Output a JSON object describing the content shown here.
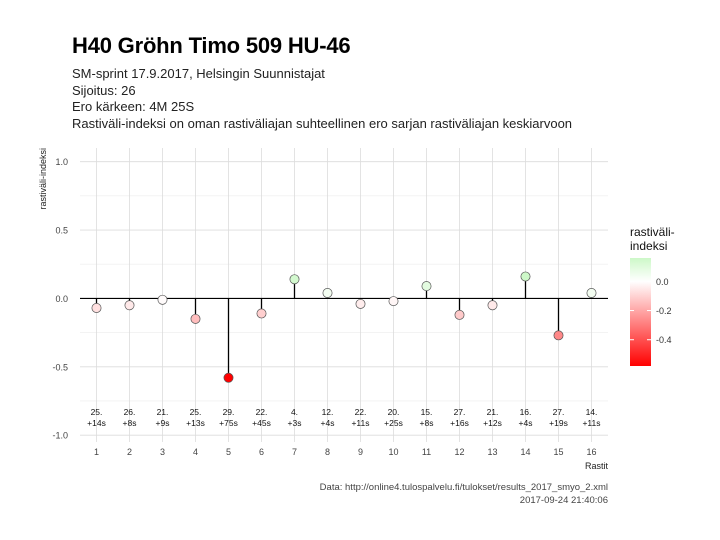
{
  "header": {
    "title": "H40 Gröhn Timo 509 HU-46",
    "subtitle_lines": [
      "SM-sprint 17.9.2017, Helsingin Suunnistajat",
      "Sijoitus: 26",
      "Ero kärkeen: 4M 25S",
      "Rastiväli-indeksi on oman rastiväliajan suhteellinen ero sarjan rastiväliajan keskiarvoon"
    ]
  },
  "caption": {
    "source": "Data: http://online4.tulospalvelu.fi/tulokset/results_2017_smyo_2.xml",
    "timestamp": "2017-09-24 21:40:06"
  },
  "chart_data": {
    "type": "lollipop",
    "xlabel": "Rastit",
    "ylabel": "rastiväli-indeksi",
    "ylim": [
      -1.05,
      1.1
    ],
    "yticks": [
      1.0,
      0.5,
      0.0,
      -0.5,
      -1.0
    ],
    "ytick_labels": [
      "1.0",
      "0.5",
      "0.0",
      "-0.5",
      "-1.0"
    ],
    "x": [
      1,
      2,
      3,
      4,
      5,
      6,
      7,
      8,
      9,
      10,
      11,
      12,
      13,
      14,
      15,
      16
    ],
    "values": [
      -0.07,
      -0.05,
      -0.01,
      -0.15,
      -0.58,
      -0.11,
      0.14,
      0.04,
      -0.04,
      -0.02,
      0.09,
      -0.12,
      -0.05,
      0.16,
      -0.27,
      0.04
    ],
    "rank_labels": [
      "25.",
      "26.",
      "21.",
      "25.",
      "29.",
      "22.",
      "4.",
      "12.",
      "22.",
      "20.",
      "15.",
      "27.",
      "21.",
      "16.",
      "27.",
      "14."
    ],
    "diff_labels": [
      "+14s",
      "+8s",
      "+9s",
      "+13s",
      "+75s",
      "+45s",
      "+3s",
      "+4s",
      "+11s",
      "+25s",
      "+8s",
      "+16s",
      "+12s",
      "+4s",
      "+19s",
      "+11s"
    ],
    "grid": true,
    "legend": {
      "title_lines": [
        "rastiväli-",
        "indeksi"
      ],
      "position": "right",
      "range": [
        -0.58,
        0.16
      ],
      "ticks": [
        0.0,
        -0.2,
        -0.4
      ],
      "tick_labels": [
        "0.0",
        "-0.2",
        "-0.4"
      ],
      "colors": {
        "high": "#cdf8c8",
        "mid": "#ffffff",
        "low": "#ff0000"
      }
    }
  }
}
